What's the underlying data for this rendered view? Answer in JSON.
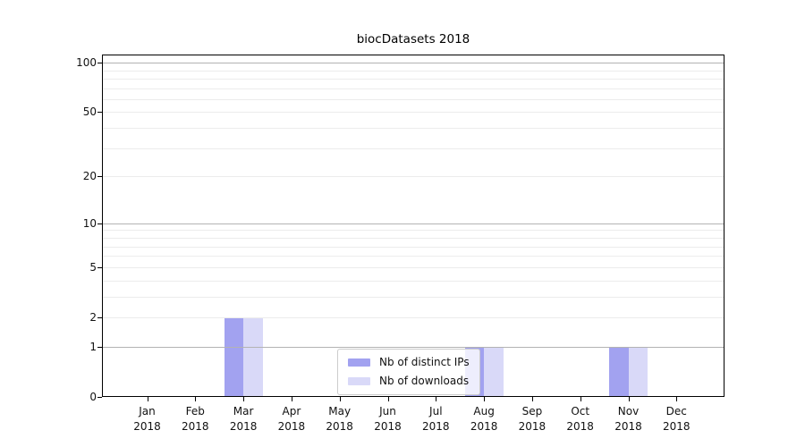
{
  "chart_data": {
    "type": "bar",
    "title": "biocDatasets 2018",
    "months": [
      "Jan",
      "Feb",
      "Mar",
      "Apr",
      "May",
      "Jun",
      "Jul",
      "Aug",
      "Sep",
      "Oct",
      "Nov",
      "Dec"
    ],
    "year": "2018",
    "series": [
      {
        "name": "Nb of distinct IPs",
        "color": "#a2a2f0",
        "values": [
          0,
          0,
          2,
          0,
          0,
          0,
          0,
          1,
          0,
          0,
          1,
          0
        ]
      },
      {
        "name": "Nb of downloads",
        "color": "#d9d9f8",
        "values": [
          0,
          0,
          2,
          0,
          0,
          0,
          0,
          1,
          0,
          0,
          1,
          0
        ]
      }
    ],
    "yscale": "log1p",
    "ylim": [
      0,
      112
    ],
    "yticks": [
      0,
      1,
      2,
      5,
      10,
      20,
      50,
      100
    ],
    "grid": {
      "major": [
        1,
        10,
        100
      ],
      "minor": [
        2,
        3,
        4,
        5,
        6,
        7,
        8,
        9,
        20,
        30,
        40,
        50,
        60,
        70,
        80,
        90
      ]
    },
    "legend": {
      "entries": [
        "Nb of distinct IPs",
        "Nb of downloads"
      ],
      "position": "inside-bottom-center"
    }
  },
  "colors": {
    "grid_major": "#b3b3b3",
    "grid_minor": "#ececec",
    "spine": "#000000",
    "text": "#111111",
    "legend_border": "#cccccc"
  }
}
